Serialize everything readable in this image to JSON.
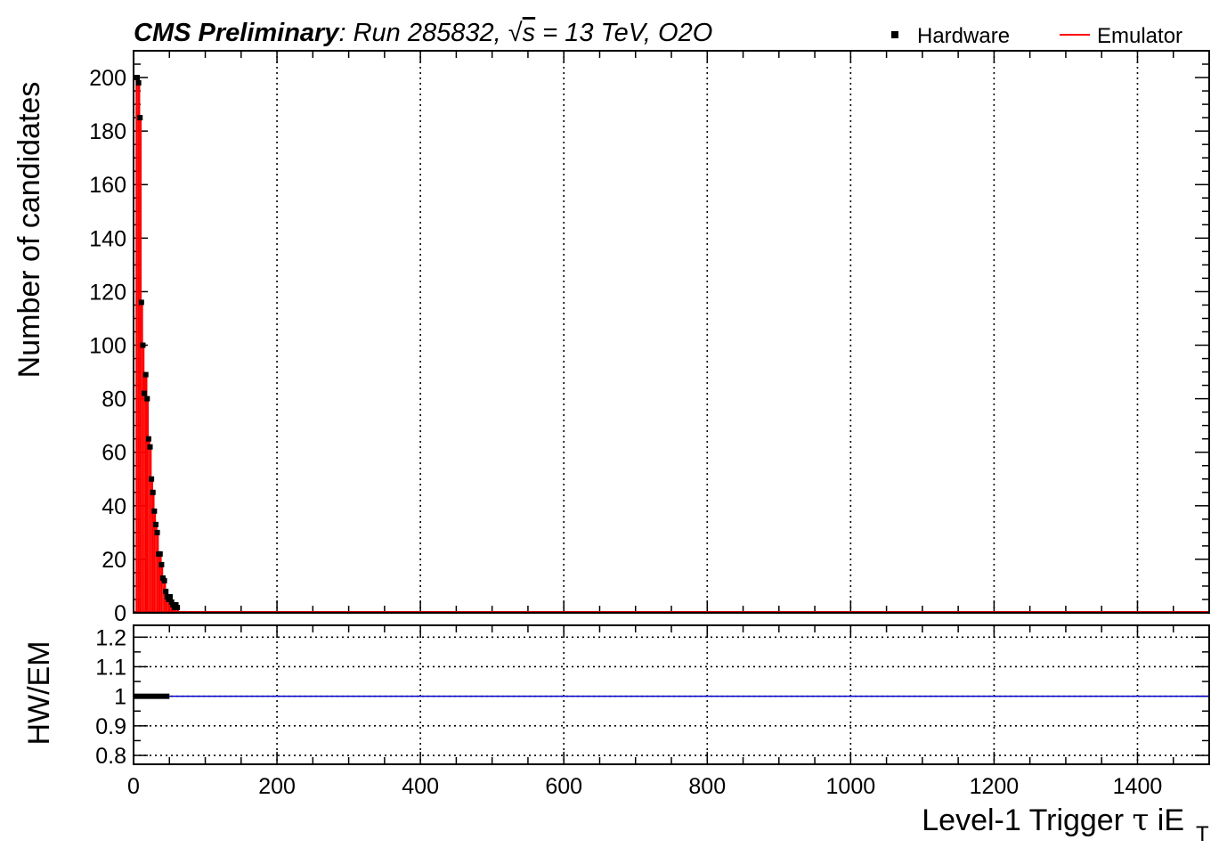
{
  "header": {
    "cms": "CMS Preliminary",
    "run_text": ": Run 285832, ",
    "sqrt_s": "s",
    "energy_text": " = 13 TeV, O2O"
  },
  "chart_data": [
    {
      "type": "bar",
      "panel": "main",
      "xlabel_main": "Level-1 Trigger ",
      "xlabel_tau": "τ",
      "xlabel_ie": " iE",
      "xlabel_sub": "T",
      "ylabel": "Number of candidates",
      "xlim": [
        0,
        1500
      ],
      "ylim": [
        0,
        210
      ],
      "x_ticks": [
        "0",
        "200",
        "400",
        "600",
        "800",
        "1000",
        "1200",
        "1400"
      ],
      "y_ticks": [
        "0",
        "20",
        "40",
        "60",
        "80",
        "100",
        "120",
        "140",
        "160",
        "180",
        "200"
      ],
      "grid_x": true,
      "grid_y": false,
      "legend_position": "top-right",
      "bin_width": 2,
      "bin_edges_start": 0,
      "series": [
        {
          "name": "Hardware",
          "style": "markers",
          "color": "#000000",
          "values": [
            0,
            0,
            200,
            198,
            185,
            116,
            100,
            82,
            89,
            80,
            65,
            62,
            50,
            45,
            38,
            33,
            30,
            22,
            22,
            18,
            13,
            12,
            8,
            6,
            5,
            6,
            4,
            3,
            2,
            3,
            2
          ]
        },
        {
          "name": "Emulator",
          "style": "histogram",
          "color": "#ff0000",
          "values": [
            0,
            0,
            200,
            198,
            185,
            116,
            100,
            82,
            89,
            80,
            65,
            62,
            50,
            45,
            38,
            33,
            30,
            22,
            22,
            18,
            13,
            12,
            8,
            6,
            5,
            6,
            4,
            3,
            2,
            3,
            2
          ]
        }
      ]
    },
    {
      "type": "line",
      "panel": "ratio",
      "ylabel": "HW/EM",
      "xlim": [
        0,
        1500
      ],
      "ylim": [
        0.77,
        1.24
      ],
      "y_ticks": [
        "0.8",
        "0.9",
        "1",
        "1.1",
        "1.2"
      ],
      "y_tick_values": [
        0.8,
        0.9,
        1.0,
        1.1,
        1.2
      ],
      "grid_x": true,
      "grid_y": true,
      "reference_line": 1.0,
      "reference_color": "#0000cc",
      "ratio_band": {
        "x_start": 0,
        "x_end": 50,
        "value": 1.0,
        "color": "#000000"
      }
    }
  ]
}
